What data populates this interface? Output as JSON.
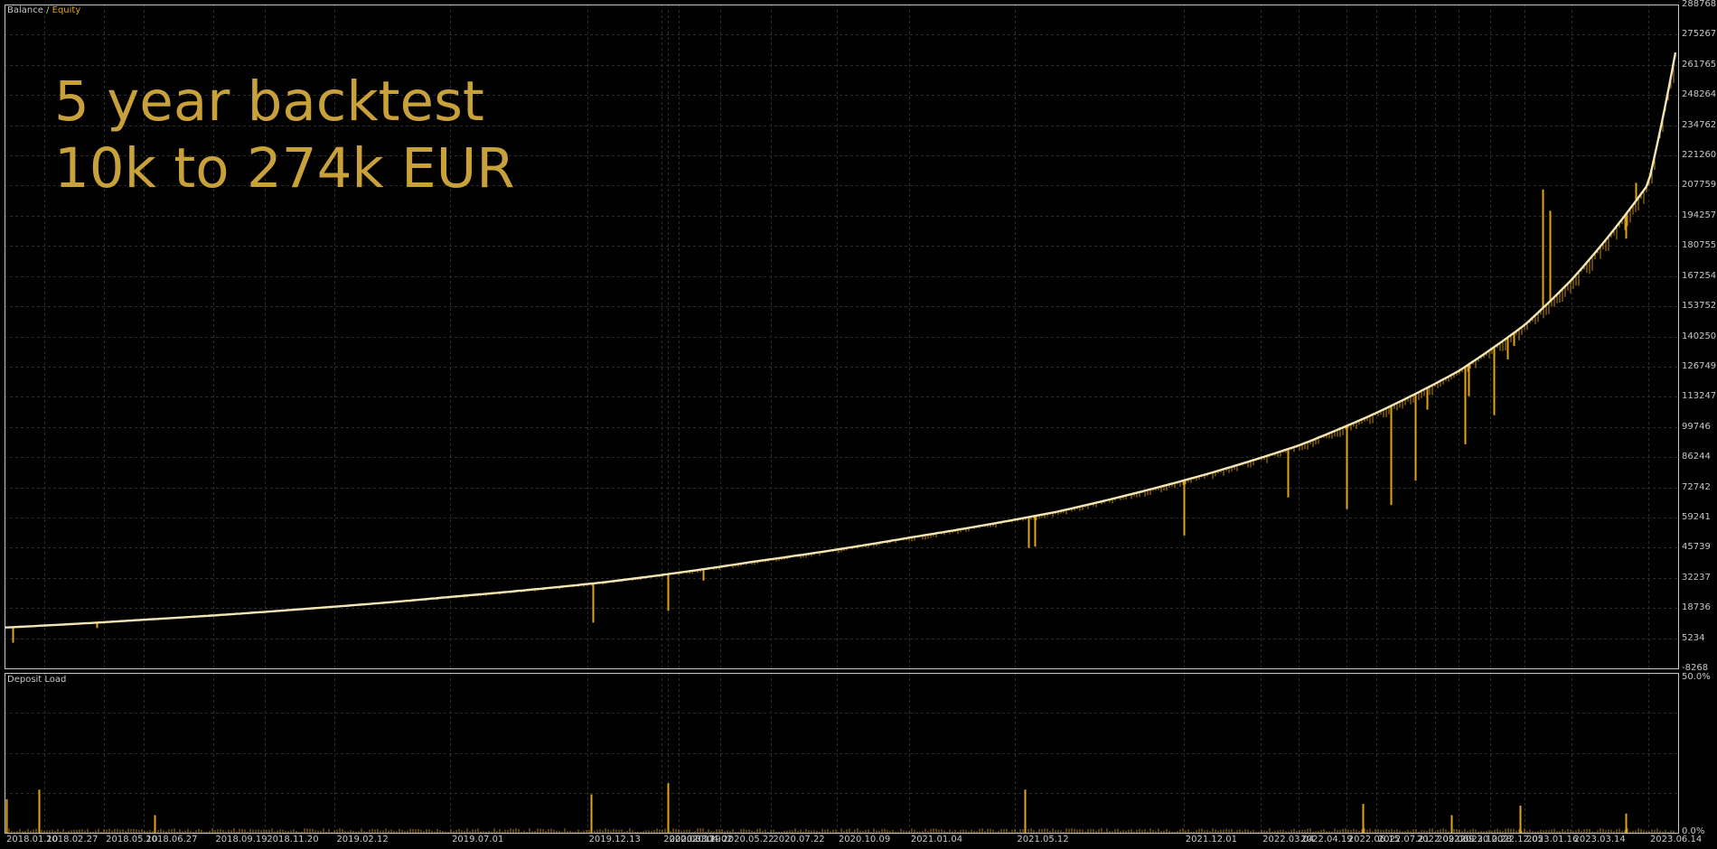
{
  "chart_data": {
    "type": "line",
    "title": "",
    "panes": {
      "main": {
        "label_prefix": "Balance",
        "label_sep": " / ",
        "label_suffix": "Equity",
        "y_ticks": [
          "288768",
          "275267",
          "261765",
          "248264",
          "234762",
          "221260",
          "207759",
          "194257",
          "180755",
          "167254",
          "153752",
          "140250",
          "126749",
          "113247",
          "99746",
          "86244",
          "72742",
          "59241",
          "45739",
          "32237",
          "18736",
          "5234",
          "-8268"
        ],
        "ylim": [
          -8268,
          288768
        ],
        "series": [
          {
            "name": "Balance",
            "color": "#f3e6b5",
            "x": [
              "2018.01.10",
              "2018.06.27",
              "2019.01.01",
              "2019.07.01",
              "2020.01.01",
              "2020.07.01",
              "2021.01.04",
              "2021.07.01",
              "2022.01.01",
              "2022.04.19",
              "2022.07.21",
              "2022.10.28",
              "2023.01.16",
              "2023.03.14",
              "2023.06.14",
              "2023.07.20"
            ],
            "values": [
              10000,
              13500,
              18200,
              23700,
              30200,
              39500,
              50200,
              61800,
              79000,
              91500,
              106000,
              124700,
              145400,
              165800,
              208500,
              274000
            ]
          },
          {
            "name": "Equity",
            "color": "#e0a319",
            "drawdowns": [
              {
                "x": "2018.01.20",
                "value": 3200
              },
              {
                "x": "2018.05.01",
                "value": 9800
              },
              {
                "x": "2019.12.20",
                "value": 12200
              },
              {
                "x": "2020.03.19",
                "value": 17500
              },
              {
                "x": "2020.05.01",
                "value": 31000
              },
              {
                "x": "2021.05.28",
                "value": 45600
              },
              {
                "x": "2021.06.05",
                "value": 46200
              },
              {
                "x": "2021.12.01",
                "value": 51200
              },
              {
                "x": "2022.04.05",
                "value": 68200
              },
              {
                "x": "2022.06.15",
                "value": 63000
              },
              {
                "x": "2022.08.08",
                "value": 64800
              },
              {
                "x": "2022.09.06",
                "value": 75800
              },
              {
                "x": "2022.09.20",
                "value": 107500
              },
              {
                "x": "2022.11.05",
                "value": 92000
              },
              {
                "x": "2022.11.09",
                "value": 113500
              },
              {
                "x": "2022.12.10",
                "value": 105000
              },
              {
                "x": "2022.12.26",
                "value": 130000
              },
              {
                "x": "2023.01.03",
                "value": 136000
              },
              {
                "x": "2023.02.07",
                "value": 206000
              },
              {
                "x": "2023.02.15",
                "value": 196500
              },
              {
                "x": "2023.05.18",
                "value": 184000
              },
              {
                "x": "2023.05.30",
                "value": 209000
              }
            ]
          }
        ]
      },
      "sub": {
        "label": "Deposit Load",
        "y_ticks": [
          "50.0%",
          "0.0%"
        ],
        "ylim": [
          0,
          50
        ],
        "series": [
          {
            "name": "Deposit Load",
            "color": "#e0a319",
            "spikes": [
              {
                "x": "2018.01.12",
                "value": 10.5
              },
              {
                "x": "2018.02.20",
                "value": 13.5
              },
              {
                "x": "2018.07.10",
                "value": 5.5
              },
              {
                "x": "2019.12.18",
                "value": 12.0
              },
              {
                "x": "2020.03.19",
                "value": 15.5
              },
              {
                "x": "2021.05.24",
                "value": 13.5
              },
              {
                "x": "2022.07.05",
                "value": 9.0
              },
              {
                "x": "2022.10.20",
                "value": 5.5
              },
              {
                "x": "2023.01.10",
                "value": 8.5
              },
              {
                "x": "2023.05.18",
                "value": 6.0
              }
            ]
          }
        ]
      }
    },
    "x_ticks": [
      "2018.01.10",
      "2018.02.27",
      "2018.05.10",
      "2018.06.27",
      "2018.09.19",
      "2018.11.20",
      "2019.02.12",
      "2019.07.01",
      "2019.12.13",
      "2020.03.12",
      "2020.03.19",
      "2020.04.02",
      "2020.05.22",
      "2020.07.22",
      "2020.10.09",
      "2021.01.04",
      "2021.05.12",
      "2021.12.01",
      "2022.03.04",
      "2022.04.19",
      "2022.06.15",
      "2022.07.21",
      "2022.09.06",
      "2022.09.30",
      "2022.10.28",
      "2022.12.05",
      "2023.01.16",
      "2023.03.14",
      "2023.06.14"
    ],
    "xlim": [
      "2018.01.10",
      "2023.07.20"
    ],
    "grid": true
  },
  "overlay_text": {
    "line1": "5 year backtest",
    "line2": "10k to 274k EUR"
  },
  "colors": {
    "background": "#000000",
    "grid": "#2a2e24",
    "border": "#c8c8c8",
    "balance": "#f3e6b5",
    "equity": "#e0a319",
    "label": "#c8c8c8",
    "label_accent": "#e0a319",
    "overlay": "#c9a13b"
  }
}
